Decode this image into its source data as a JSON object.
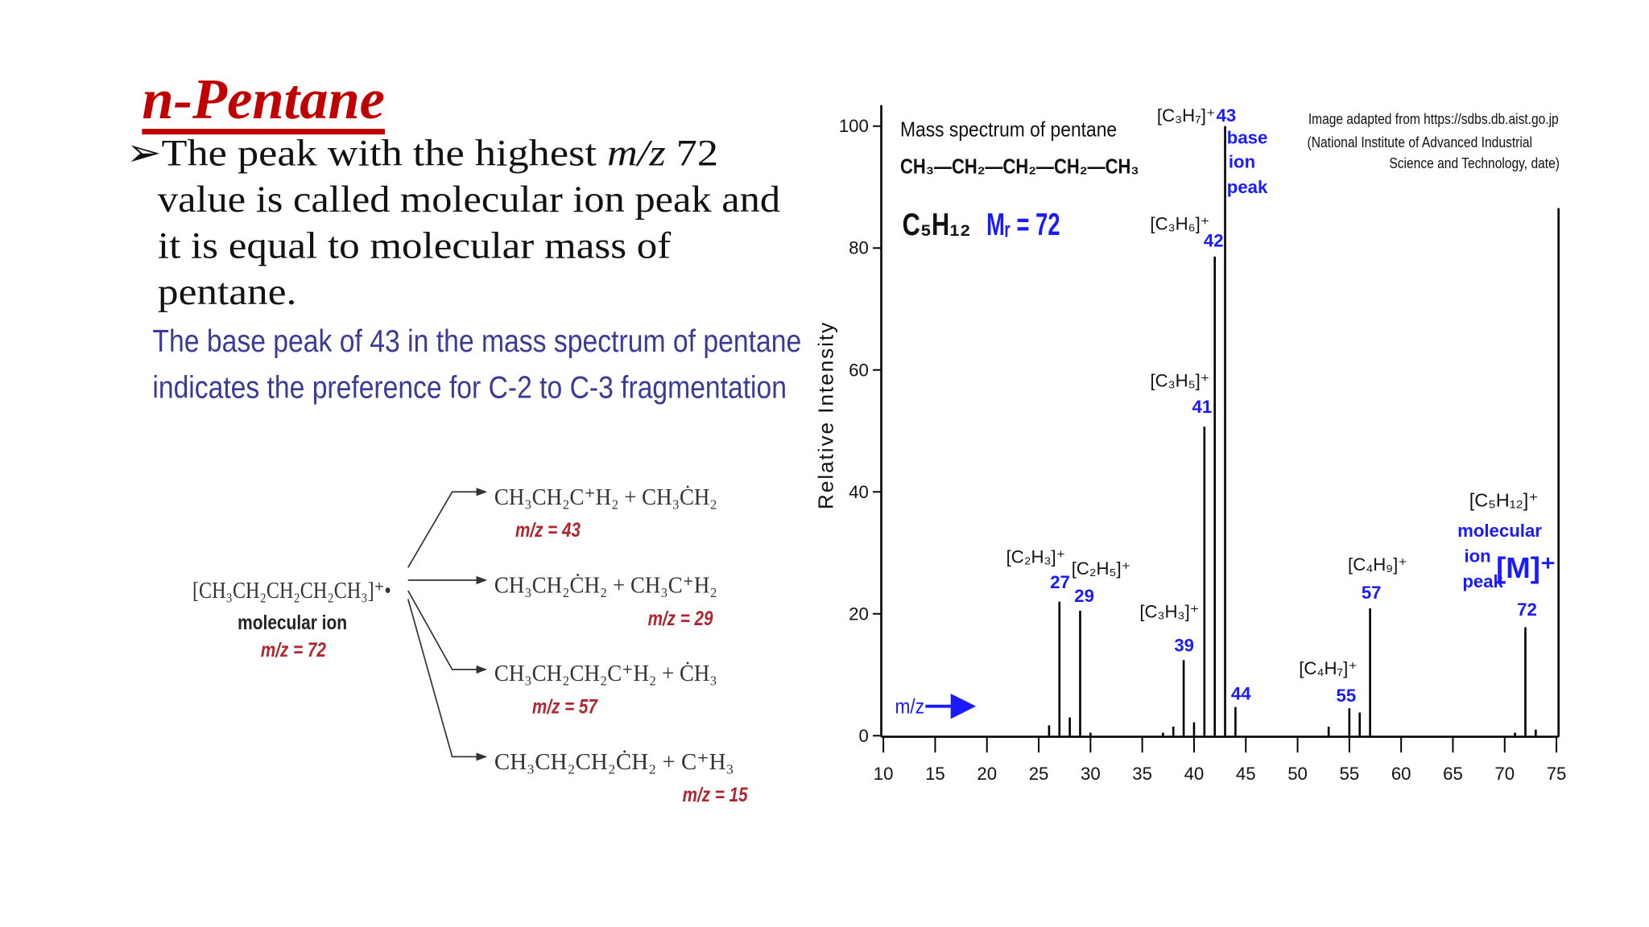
{
  "slide": {
    "title": "n-Pentane",
    "bullet_lines": [
      [
        "➢",
        "The peak with the highest ",
        "m/z",
        " 72"
      ],
      "value is called molecular ion peak and",
      "it is equal to molecular mass of",
      "pentane."
    ],
    "note_lines": [
      "The base peak of 43 in the mass spectrum of pentane",
      "indicates the preference for C-2 to C-3 fragmentation"
    ],
    "fragmentation": {
      "parent": "[CH₃CH₂CH₂CH₂CH₃]⁺•",
      "parent_name": "molecular ion",
      "parent_mz": "m/z = 72",
      "products": [
        {
          "formula": "CH₃CH₂C⁺H₂  +  CH₃ĊH₂",
          "mz": "m/z = 43"
        },
        {
          "formula": "CH₃CH₂ĊH₂  +  CH₃C⁺H₂",
          "mz": "m/z = 29"
        },
        {
          "formula": "CH₃CH₂CH₂C⁺H₂  +  ĊH₃",
          "mz": "m/z = 57"
        },
        {
          "formula": "CH₃CH₂CH₂ĊH₂  +   C⁺H₃",
          "mz": "m/z = 15"
        }
      ]
    }
  },
  "chart_data": {
    "type": "bar",
    "title": "Mass spectrum of pentane",
    "structure": "CH₃—CH₂—CH₂—CH₂—CH₃",
    "formula": "C₅H₁₂",
    "mass_label": "Mᵣ = 72",
    "x_label": "m/z",
    "y_label": "Relative Intensity",
    "credit": [
      "Image adapted from https://sdbs.db.aist.go.jp",
      "(National Institute of Advanced Industrial",
      "Science and Technology, date)"
    ],
    "x": [
      26,
      27,
      28,
      29,
      30,
      37,
      38,
      39,
      40,
      41,
      42,
      43,
      44,
      53,
      55,
      56,
      57,
      71,
      72,
      73
    ],
    "values": [
      1.7,
      22,
      3,
      20.5,
      0.5,
      0.5,
      1.5,
      12.4,
      2.2,
      50.7,
      78.6,
      100,
      4.7,
      1.5,
      4.5,
      3.8,
      20.9,
      0.5,
      17.8,
      1
    ],
    "color": "#000000",
    "xlim": [
      10,
      75
    ],
    "xticks": [
      10,
      15,
      20,
      25,
      30,
      35,
      40,
      45,
      50,
      55,
      60,
      65,
      70,
      75
    ],
    "ylim": [
      0,
      100
    ],
    "yticks": [
      0,
      20,
      40,
      60,
      80,
      100
    ],
    "annotations": [
      "[C₂H₃]⁺",
      "27",
      "[C₂H₅]⁺",
      "29",
      "[C₃H₃]⁺",
      "39",
      "[C₃H₅]⁺",
      "41",
      "[C₃H₆]⁺",
      "42",
      "[C₃H₇]⁺",
      "43",
      "base",
      "ion",
      "peak",
      "44",
      "[C₄H₇]⁺",
      "55",
      "[C₄H₉]⁺",
      "57",
      "[C₅H₁₂]⁺",
      "molecular",
      "ion",
      "peak",
      "[M]⁺",
      "72"
    ]
  }
}
